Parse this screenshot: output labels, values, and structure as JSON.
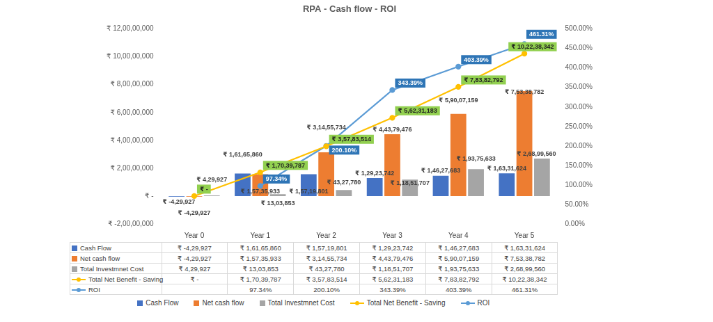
{
  "chart_data": {
    "type": "bar",
    "title": "RPA - Cash flow - ROI",
    "categories": [
      "Year 0",
      "Year 1",
      "Year 2",
      "Year 3",
      "Year 4",
      "Year 5"
    ],
    "series": [
      {
        "name": "Cash Flow",
        "color": "#4472c4",
        "values": [
          -429927,
          16165860,
          15719801,
          12923742,
          14627683,
          16331624
        ],
        "value_labels": [
          "₹ -4,29,927",
          "₹ 1,61,65,860",
          "₹ 1,57,19,801",
          "₹ 1,29,23,742",
          "₹ 1,46,27,683",
          "₹ 1,63,31,624"
        ]
      },
      {
        "name": "Net cash flow",
        "color": "#ed7d31",
        "values": [
          -429927,
          15735933,
          31455734,
          44379476,
          59007159,
          75338782
        ],
        "value_labels": [
          "₹ -4,29,927",
          "₹ 1,57,35,933",
          "₹ 3,14,55,734",
          "₹ 4,43,79,476",
          "₹ 5,90,07,159",
          "₹ 7,53,38,782"
        ]
      },
      {
        "name": "Total Investmnet Cost",
        "color": "#a5a5a5",
        "values": [
          429927,
          1303853,
          4327780,
          11851707,
          19375633,
          26899560
        ],
        "value_labels": [
          "₹ 4,29,927",
          "₹ 13,03,853",
          "₹ 43,27,780",
          "₹ 1,18,51,707",
          "₹ 1,93,75,633",
          "₹ 2,68,99,560"
        ]
      },
      {
        "name": "Total Net Benefit - Saving",
        "color": "#ffc000",
        "type": "line",
        "marker": "circle",
        "line_style": "solid",
        "values": [
          0,
          17039787,
          35783514,
          56231183,
          78382792,
          102238342
        ],
        "value_labels": [
          "₹ -",
          "₹ 1,70,39,787",
          "₹ 3,57,83,514",
          "₹ 5,62,31,183",
          "₹ 7,83,82,792",
          "₹ 10,22,38,342"
        ]
      },
      {
        "name": "ROI",
        "color": "#5b9bd5",
        "type": "line",
        "marker": "circle",
        "line_style": "solid",
        "axis": "y2",
        "values": [
          null,
          97.34,
          200.1,
          343.39,
          403.39,
          461.31
        ],
        "value_labels": [
          null,
          "97.34%",
          "200.10%",
          "343.39%",
          "403.39%",
          "461.31%"
        ]
      }
    ],
    "ylim": [
      -20000000,
      120000000
    ],
    "yticks": [
      {
        "value": -20000000,
        "label": "₹ -2,00,00,000"
      },
      {
        "value": 0,
        "label": "₹ -"
      },
      {
        "value": 20000000,
        "label": "₹ 2,00,00,000"
      },
      {
        "value": 40000000,
        "label": "₹ 4,00,00,000"
      },
      {
        "value": 60000000,
        "label": "₹ 6,00,00,000"
      },
      {
        "value": 80000000,
        "label": "₹ 8,00,00,000"
      },
      {
        "value": 100000000,
        "label": "₹ 10,00,00,000"
      },
      {
        "value": 120000000,
        "label": "₹ 12,00,00,000"
      }
    ],
    "y2lim": [
      0,
      500
    ],
    "y2ticks": [
      {
        "value": 0,
        "label": "0.00%"
      },
      {
        "value": 50,
        "label": "50.00%"
      },
      {
        "value": 100,
        "label": "100.00%"
      },
      {
        "value": 150,
        "label": "150.00%"
      },
      {
        "value": 200,
        "label": "200.00%"
      },
      {
        "value": 250,
        "label": "250.00%"
      },
      {
        "value": 300,
        "label": "300.00%"
      },
      {
        "value": 350,
        "label": "350.00%"
      },
      {
        "value": 400,
        "label": "400.00%"
      },
      {
        "value": 450,
        "label": "450.00%"
      },
      {
        "value": 500,
        "label": "500.00%"
      }
    ],
    "grid": false,
    "legend": "bottom",
    "data_labels": true
  }
}
